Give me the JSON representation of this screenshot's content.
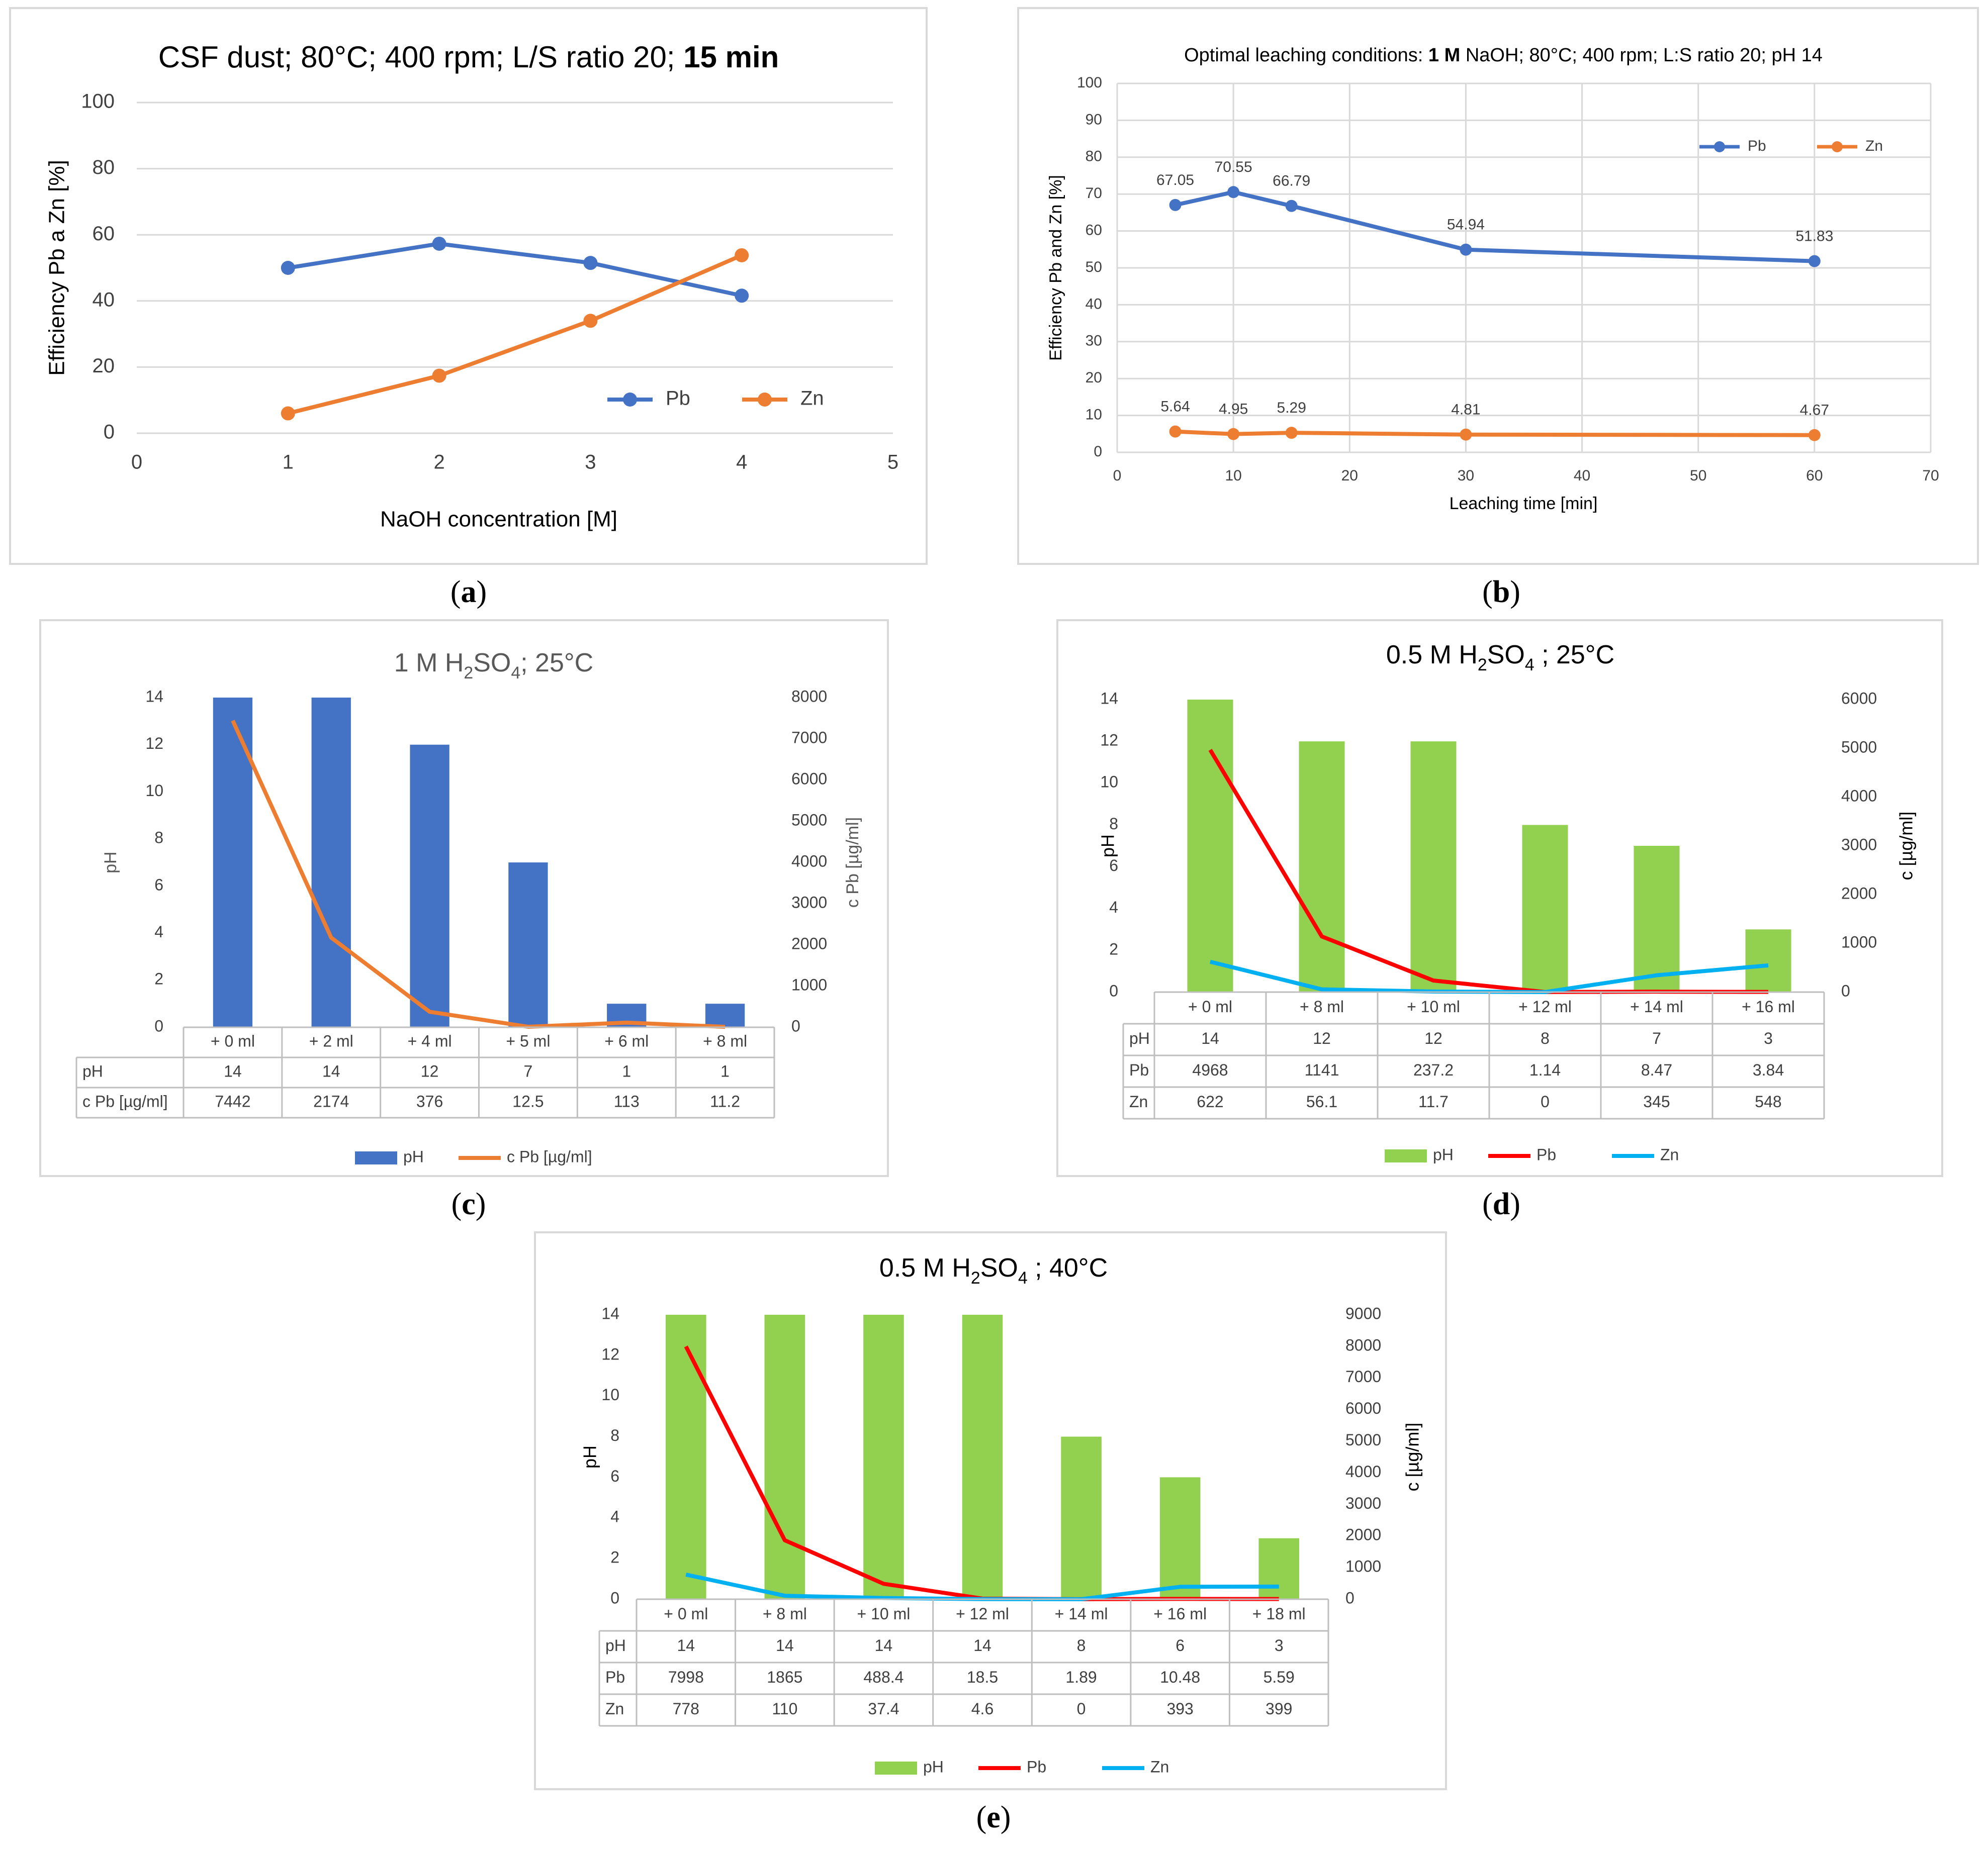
{
  "colors": {
    "blue": "#4472C4",
    "orange": "#ED7D31",
    "green": "#92D050",
    "red": "#FF0000",
    "cyan": "#00B0F0"
  },
  "chart_data": [
    {
      "id": "a",
      "type": "line",
      "panel_label": "a",
      "title": "CSF dust;  80°C; 400 rpm; L/S ratio 20;",
      "title_bold": "15 min",
      "xlabel": "NaOH concentration [M]",
      "ylabel": "Efficiency Pb a Zn [%]",
      "xlim": [
        0,
        5
      ],
      "ylim": [
        0,
        100
      ],
      "x_ticks": [
        "0",
        "1",
        "2",
        "3",
        "4",
        "5"
      ],
      "y_ticks": [
        "0",
        "20",
        "40",
        "60",
        "80",
        "100"
      ],
      "series": [
        {
          "name": "Pb",
          "color": "#4472C4",
          "x": [
            1,
            2,
            3,
            4
          ],
          "y": [
            50,
            57.3,
            51.5,
            41.6
          ]
        },
        {
          "name": "Zn",
          "color": "#ED7D31",
          "x": [
            1,
            2,
            3,
            4
          ],
          "y": [
            6,
            17.4,
            34,
            53.8
          ]
        }
      ],
      "legend": [
        "Pb",
        "Zn"
      ]
    },
    {
      "id": "b",
      "type": "line",
      "panel_label": "b",
      "title_parts": [
        "Optimal leaching conditions: ",
        "1 M",
        " NaOH;  80°C; 400 rpm; L:S ratio 20; pH 14"
      ],
      "xlabel": "Leaching time [min]",
      "ylabel": "Efficiency Pb and Zn [%]",
      "xlim": [
        0,
        70
      ],
      "ylim": [
        0,
        100
      ],
      "x_ticks": [
        "0",
        "10",
        "20",
        "30",
        "40",
        "50",
        "60",
        "70"
      ],
      "y_ticks": [
        "0",
        "10",
        "20",
        "30",
        "40",
        "50",
        "60",
        "70",
        "80",
        "90",
        "100"
      ],
      "series": [
        {
          "name": "Pb",
          "color": "#4472C4",
          "x": [
            5,
            10,
            15,
            30,
            60
          ],
          "y": [
            67.05,
            70.55,
            66.79,
            54.94,
            51.83
          ],
          "labels": [
            "67.05",
            "70.55",
            "66.79",
            "54.94",
            "51.83"
          ]
        },
        {
          "name": "Zn",
          "color": "#ED7D31",
          "x": [
            5,
            10,
            15,
            30,
            60
          ],
          "y": [
            5.64,
            4.95,
            5.29,
            4.81,
            4.67
          ],
          "labels": [
            "5.64",
            "4.95",
            "5.29",
            "4.81",
            "4.67"
          ]
        }
      ],
      "legend": [
        "Pb",
        "Zn"
      ]
    },
    {
      "id": "c",
      "type": "bar",
      "panel_label": "c",
      "title": "1 M H",
      "title_sub": "2",
      "title_end": "SO",
      "title_sub2": "4",
      "title_tail": ";  25°C",
      "ylabel": "pH",
      "y2label": "c Pb [µg/ml]",
      "ylim": [
        0,
        14
      ],
      "y2lim": [
        0,
        8000
      ],
      "y_ticks": [
        "0",
        "2",
        "4",
        "6",
        "8",
        "10",
        "12",
        "14"
      ],
      "y2_ticks": [
        "0",
        "1000",
        "2000",
        "3000",
        "4000",
        "5000",
        "6000",
        "7000",
        "8000"
      ],
      "categories": [
        "+ 0 ml",
        "+ 2 ml",
        "+ 4 ml",
        "+ 5 ml",
        "+ 6 ml",
        "+ 8 ml"
      ],
      "bars": {
        "name": "pH",
        "color": "#4472C4",
        "values": [
          14,
          14,
          12,
          7,
          1,
          1
        ]
      },
      "lines": [
        {
          "name": "c Pb [µg/ml]",
          "color": "#ED7D31",
          "values": [
            7442,
            2174,
            376,
            12.5,
            113,
            11.2
          ]
        }
      ],
      "table": [
        {
          "label": "pH",
          "cells": [
            "14",
            "14",
            "12",
            "7",
            "1",
            "1"
          ]
        },
        {
          "label": "c Pb [µg/ml]",
          "cells": [
            "7442",
            "2174",
            "376",
            "12.5",
            "113",
            "11.2"
          ]
        }
      ],
      "legend": [
        "pH",
        "c Pb [µg/ml]"
      ]
    },
    {
      "id": "d",
      "type": "bar",
      "panel_label": "d",
      "title": "0.5 M H",
      "title_sub": "2",
      "title_end": "SO",
      "title_sub2": "4",
      "title_tail": " ;  25°C",
      "ylabel": "pH",
      "y2label": "c [µg/ml]",
      "ylim": [
        0,
        14
      ],
      "y2lim": [
        0,
        6000
      ],
      "y_ticks": [
        "0",
        "2",
        "4",
        "6",
        "8",
        "10",
        "12",
        "14"
      ],
      "y2_ticks": [
        "0",
        "1000",
        "2000",
        "3000",
        "4000",
        "5000",
        "6000"
      ],
      "categories": [
        "+ 0 ml",
        "+ 8 ml",
        "+ 10 ml",
        "+ 12 ml",
        "+ 14 ml",
        "+ 16 ml"
      ],
      "bars": {
        "name": "pH",
        "color": "#92D050",
        "values": [
          14,
          12,
          12,
          8,
          7,
          3
        ]
      },
      "lines": [
        {
          "name": "Pb",
          "color": "#FF0000",
          "values": [
            4968,
            1141,
            237.2,
            1.14,
            8.47,
            3.84
          ]
        },
        {
          "name": "Zn",
          "color": "#00B0F0",
          "values": [
            622,
            56.1,
            11.7,
            0,
            345,
            548
          ]
        }
      ],
      "table": [
        {
          "label": "pH",
          "cells": [
            "14",
            "12",
            "12",
            "8",
            "7",
            "3"
          ]
        },
        {
          "label": "Pb",
          "cells": [
            "4968",
            "1141",
            "237.2",
            "1.14",
            "8.47",
            "3.84"
          ]
        },
        {
          "label": "Zn",
          "cells": [
            "622",
            "56.1",
            "11.7",
            "0",
            "345",
            "548"
          ]
        }
      ],
      "legend": [
        "pH",
        "Pb",
        "Zn"
      ]
    },
    {
      "id": "e",
      "type": "bar",
      "panel_label": "e",
      "title": "0.5 M H",
      "title_sub": "2",
      "title_end": "SO",
      "title_sub2": "4",
      "title_tail": " ;  40°C",
      "ylabel": "pH",
      "y2label": "c [µg/ml]",
      "ylim": [
        0,
        14
      ],
      "y2lim": [
        0,
        9000
      ],
      "y_ticks": [
        "0",
        "2",
        "4",
        "6",
        "8",
        "10",
        "12",
        "14"
      ],
      "y2_ticks": [
        "0",
        "1000",
        "2000",
        "3000",
        "4000",
        "5000",
        "6000",
        "7000",
        "8000",
        "9000"
      ],
      "categories": [
        "+ 0 ml",
        "+ 8 ml",
        "+ 10 ml",
        "+ 12 ml",
        "+ 14 ml",
        "+ 16 ml",
        "+ 18 ml"
      ],
      "bars": {
        "name": "pH",
        "color": "#92D050",
        "values": [
          14,
          14,
          14,
          14,
          8,
          6,
          3
        ]
      },
      "lines": [
        {
          "name": "Pb",
          "color": "#FF0000",
          "values": [
            7998,
            1865,
            488.4,
            18.5,
            1.89,
            10.48,
            5.59
          ]
        },
        {
          "name": "Zn",
          "color": "#00B0F0",
          "values": [
            778,
            110,
            37.4,
            4.6,
            0,
            393,
            399
          ]
        }
      ],
      "table": [
        {
          "label": "pH",
          "cells": [
            "14",
            "14",
            "14",
            "14",
            "8",
            "6",
            "3"
          ]
        },
        {
          "label": "Pb",
          "cells": [
            "7998",
            "1865",
            "488.4",
            "18.5",
            "1.89",
            "10.48",
            "5.59"
          ]
        },
        {
          "label": "Zn",
          "cells": [
            "778",
            "110",
            "37.4",
            "4.6",
            "0",
            "393",
            "399"
          ]
        }
      ],
      "legend": [
        "pH",
        "Pb",
        "Zn"
      ]
    }
  ]
}
